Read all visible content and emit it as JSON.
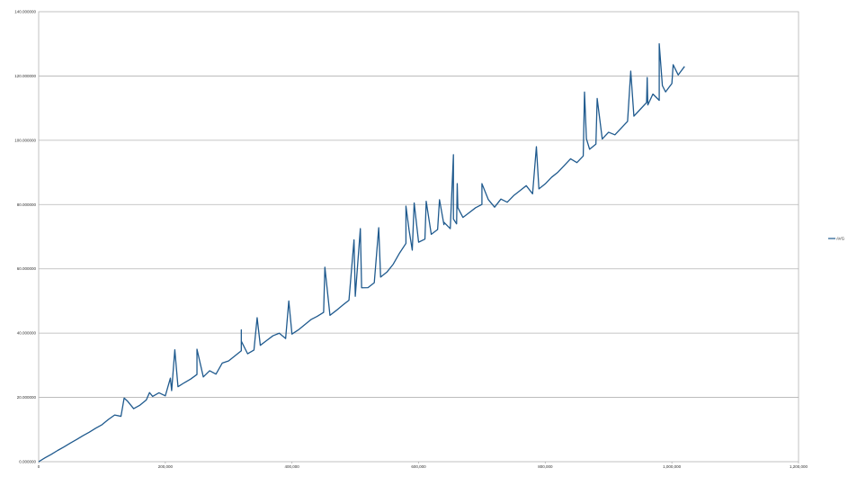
{
  "chart_data": {
    "type": "line",
    "title": "",
    "xlabel": "",
    "ylabel": "",
    "xlim": [
      0,
      1200000
    ],
    "ylim": [
      0,
      140
    ],
    "x_ticks": [
      0,
      200000,
      400000,
      600000,
      800000,
      1000000,
      1200000
    ],
    "x_tick_labels": [
      "0",
      "200,000",
      "400,000",
      "600,000",
      "800,000",
      "1,000,000",
      "1,200,000"
    ],
    "y_ticks": [
      0,
      20,
      40,
      60,
      80,
      100,
      120,
      140
    ],
    "y_tick_labels": [
      "0.000000",
      "20.000000",
      "40.000000",
      "60.000000",
      "80.000000",
      "100.000000",
      "120.000000",
      "140.000000"
    ],
    "grid": true,
    "legend_position": "right",
    "series": [
      {
        "name": "AVG",
        "color": "#1f5a8e",
        "x_start": 0,
        "x_step": 10000,
        "values": [
          0,
          1.2,
          2.3,
          3.5,
          4.6,
          5.8,
          6.9,
          8.1,
          9.2,
          10.4,
          11.5,
          12.7,
          13.8,
          15.0,
          19.5,
          16.8,
          17.6,
          18.9,
          19.7,
          20.5,
          21.3,
          22.6,
          23.5,
          24.4,
          25.2,
          26.3,
          27.4,
          29.0,
          27.6,
          30.7,
          31.0,
          32.2,
          33.4,
          34.5,
          35.3,
          36.4,
          37.5,
          38.6,
          39.0,
          39.5,
          40.5,
          41.4,
          42.6,
          43.8,
          44.4,
          45.2,
          46.6,
          47.7,
          48.9,
          50.0,
          50.8,
          53.0,
          55.5,
          56.6,
          57.9,
          59.0,
          61.0,
          64.0,
          66.5,
          67.0,
          69.0,
          69.5,
          70.5,
          71.5,
          72.5,
          74.0,
          75.0,
          76.5,
          77.5,
          78.5,
          79.0,
          80.0,
          80.5,
          82.5,
          81.0,
          82.5,
          83.5,
          84.5,
          85.0,
          86.0,
          87.0,
          88.5,
          89.5,
          91.0,
          92.5,
          94.5,
          96.0,
          97.5,
          98.5,
          99.5,
          101.0,
          103.5,
          105.0,
          106.5,
          107.5,
          109.0,
          110.5,
          112.5,
          114.0,
          116.0,
          118.0,
          120.0,
          122.0
        ],
        "spikes": [
          {
            "x": 135000,
            "value": 19.8
          },
          {
            "x": 175000,
            "value": 21.5
          },
          {
            "x": 215000,
            "value": 34.8
          },
          {
            "x": 250000,
            "value": 35.0
          },
          {
            "x": 320000,
            "value": 41.0
          },
          {
            "x": 345000,
            "value": 44.8
          },
          {
            "x": 395000,
            "value": 50.0
          },
          {
            "x": 452000,
            "value": 60.5
          },
          {
            "x": 498000,
            "value": 69.0
          },
          {
            "x": 508000,
            "value": 72.5
          },
          {
            "x": 537000,
            "value": 72.8
          },
          {
            "x": 580000,
            "value": 79.5
          },
          {
            "x": 593000,
            "value": 80.5
          },
          {
            "x": 612000,
            "value": 81.0
          },
          {
            "x": 633000,
            "value": 81.5
          },
          {
            "x": 655000,
            "value": 95.5
          },
          {
            "x": 661000,
            "value": 86.5
          },
          {
            "x": 700000,
            "value": 86.5
          },
          {
            "x": 786000,
            "value": 98.0
          },
          {
            "x": 862000,
            "value": 115.0
          },
          {
            "x": 882000,
            "value": 113.0
          },
          {
            "x": 935000,
            "value": 121.5
          },
          {
            "x": 961000,
            "value": 119.5
          },
          {
            "x": 980000,
            "value": 130.0
          },
          {
            "x": 1002000,
            "value": 123.5
          }
        ],
        "dips": [
          {
            "x": 208000,
            "value": 26.0
          },
          {
            "x": 320000,
            "value": 37.5
          },
          {
            "x": 585000,
            "value": 72.0
          },
          {
            "x": 640000,
            "value": 74.5
          },
          {
            "x": 655000,
            "value": 75.5
          },
          {
            "x": 662000,
            "value": 79.0
          },
          {
            "x": 865000,
            "value": 100.5
          },
          {
            "x": 962000,
            "value": 111.0
          },
          {
            "x": 985000,
            "value": 117.0
          }
        ]
      }
    ]
  }
}
